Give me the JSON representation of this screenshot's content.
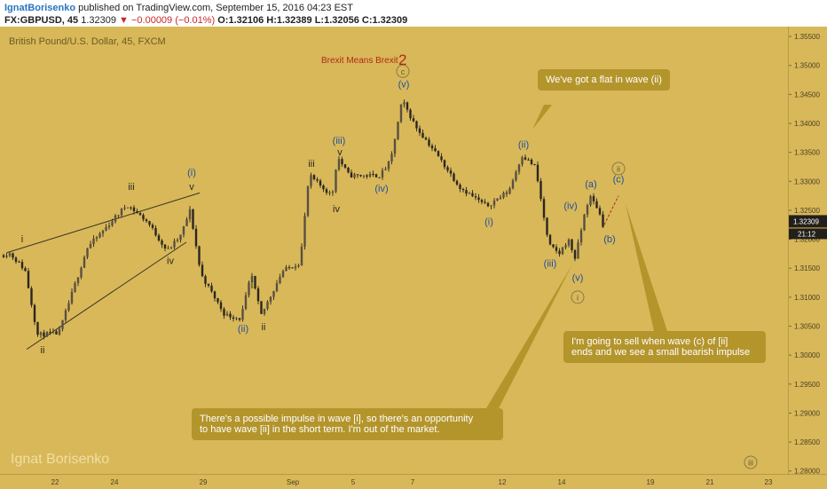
{
  "header": {
    "author": "IgnatBorisenko",
    "published": "published on TradingView.com, September 15, 2016 04:23 EST",
    "symbol": "FX:GBPUSD, 45",
    "last": "1.32309",
    "change": "−0.00009 (−0.01%)",
    "ohlc": "O:1.32106 H:1.32389 L:1.32056 C:1.32309"
  },
  "chart_title": "British Pound/U.S. Dollar, 45, FXCM",
  "watermark": "Ignat Borisenko",
  "annotations": {
    "brexit": "Brexit Means Brexit",
    "brexit_num": "2",
    "flat": "We've got a flat in wave (ii)",
    "impulse_l1": "There's a possible impulse in wave [i], so there's an opportunity",
    "impulse_l2": "to have wave [ii] in the short term. I'm out of the market.",
    "sell_l1": "I'm going to sell when wave (c) of [ii]",
    "sell_l2": "ends and we see a small bearish impulse"
  },
  "price_badge": "1.32309",
  "countdown": "21:12",
  "colors": {
    "background": "#d8b859",
    "callout": "#b4952c",
    "candle": "#34302a",
    "blue": "#1f4e9e",
    "brexit_red": "#b02a1a"
  },
  "chart_data": {
    "type": "candlestick",
    "y_ticks": [
      "1.35500",
      "1.35000",
      "1.34500",
      "1.34000",
      "1.33500",
      "1.33000",
      "1.32500",
      "1.32000",
      "1.31500",
      "1.31000",
      "1.30500",
      "1.30000",
      "1.29500",
      "1.29000",
      "1.28500",
      "1.28000"
    ],
    "x_ticks": [
      "22",
      "24",
      "29",
      "Sep",
      "5",
      "7",
      "12",
      "14",
      "19",
      "21",
      "23"
    ],
    "ylim": [
      1.2795,
      1.3567
    ],
    "price_path": [
      {
        "t": 0,
        "p": 1.317
      },
      {
        "t": 12,
        "p": 1.3177
      },
      {
        "t": 30,
        "p": 1.3147
      },
      {
        "t": 44,
        "p": 1.3035
      },
      {
        "t": 68,
        "p": 1.3038
      },
      {
        "t": 100,
        "p": 1.3185
      },
      {
        "t": 145,
        "p": 1.326
      },
      {
        "t": 168,
        "p": 1.323
      },
      {
        "t": 190,
        "p": 1.318
      },
      {
        "t": 205,
        "p": 1.3205
      },
      {
        "t": 216,
        "p": 1.325
      },
      {
        "t": 228,
        "p": 1.314
      },
      {
        "t": 255,
        "p": 1.307
      },
      {
        "t": 273,
        "p": 1.3063
      },
      {
        "t": 285,
        "p": 1.314
      },
      {
        "t": 296,
        "p": 1.3068
      },
      {
        "t": 320,
        "p": 1.3145
      },
      {
        "t": 340,
        "p": 1.316
      },
      {
        "t": 350,
        "p": 1.331
      },
      {
        "t": 376,
        "p": 1.3275
      },
      {
        "t": 382,
        "p": 1.3343
      },
      {
        "t": 395,
        "p": 1.331
      },
      {
        "t": 430,
        "p": 1.331
      },
      {
        "t": 442,
        "p": 1.3335
      },
      {
        "t": 455,
        "p": 1.344
      },
      {
        "t": 470,
        "p": 1.3395
      },
      {
        "t": 490,
        "p": 1.3355
      },
      {
        "t": 520,
        "p": 1.329
      },
      {
        "t": 550,
        "p": 1.3257
      },
      {
        "t": 575,
        "p": 1.3283
      },
      {
        "t": 590,
        "p": 1.3345
      },
      {
        "t": 605,
        "p": 1.3325
      },
      {
        "t": 620,
        "p": 1.319
      },
      {
        "t": 632,
        "p": 1.3175
      },
      {
        "t": 642,
        "p": 1.32
      },
      {
        "t": 650,
        "p": 1.3167
      },
      {
        "t": 660,
        "p": 1.324
      },
      {
        "t": 666,
        "p": 1.3275
      },
      {
        "t": 676,
        "p": 1.3252
      },
      {
        "t": 681,
        "p": 1.3225
      }
    ],
    "wave_labels": [
      {
        "text": "i",
        "t": 25,
        "p": 1.3195,
        "color": "dark"
      },
      {
        "text": "ii",
        "t": 48,
        "p": 1.3003,
        "color": "dark"
      },
      {
        "text": "iii",
        "t": 148,
        "p": 1.3285,
        "color": "dark"
      },
      {
        "text": "iv",
        "t": 192,
        "p": 1.3157,
        "color": "dark"
      },
      {
        "text": "(i)",
        "t": 216,
        "p": 1.331,
        "color": "blue"
      },
      {
        "text": "v",
        "t": 216,
        "p": 1.3285,
        "color": "dark"
      },
      {
        "text": "i",
        "t": 284,
        "p": 1.3115,
        "color": "dark"
      },
      {
        "text": "(ii)",
        "t": 274,
        "p": 1.304,
        "color": "blue"
      },
      {
        "text": "ii",
        "t": 297,
        "p": 1.3043,
        "color": "dark"
      },
      {
        "text": "iii",
        "t": 351,
        "p": 1.3325,
        "color": "dark"
      },
      {
        "text": "(iii)",
        "t": 382,
        "p": 1.3365,
        "color": "blue"
      },
      {
        "text": "v",
        "t": 383,
        "p": 1.3345,
        "color": "dark"
      },
      {
        "text": "iv",
        "t": 379,
        "p": 1.3247,
        "color": "dark"
      },
      {
        "text": "(iv)",
        "t": 430,
        "p": 1.3282,
        "color": "blue"
      },
      {
        "text": "(v)",
        "t": 455,
        "p": 1.3462,
        "color": "blue"
      },
      {
        "text": "(i)",
        "t": 551,
        "p": 1.3225,
        "color": "blue"
      },
      {
        "text": "(ii)",
        "t": 590,
        "p": 1.3358,
        "color": "blue"
      },
      {
        "text": "(iii)",
        "t": 620,
        "p": 1.3153,
        "color": "blue"
      },
      {
        "text": "(iv)",
        "t": 643,
        "p": 1.3252,
        "color": "blue"
      },
      {
        "text": "(v)",
        "t": 651,
        "p": 1.3128,
        "color": "blue"
      },
      {
        "text": "(a)",
        "t": 666,
        "p": 1.329,
        "color": "blue"
      },
      {
        "text": "(b)",
        "t": 687,
        "p": 1.3195,
        "color": "blue"
      },
      {
        "text": "(c)",
        "t": 697,
        "p": 1.3298,
        "color": "blue"
      }
    ],
    "circled_labels": [
      {
        "text": "c",
        "t": 454,
        "p": 1.349
      },
      {
        "text": "i",
        "t": 651,
        "p": 1.31
      },
      {
        "text": "ii",
        "t": 697,
        "p": 1.3322
      },
      {
        "text": "iii",
        "t": 846,
        "p": 1.2815
      }
    ]
  }
}
